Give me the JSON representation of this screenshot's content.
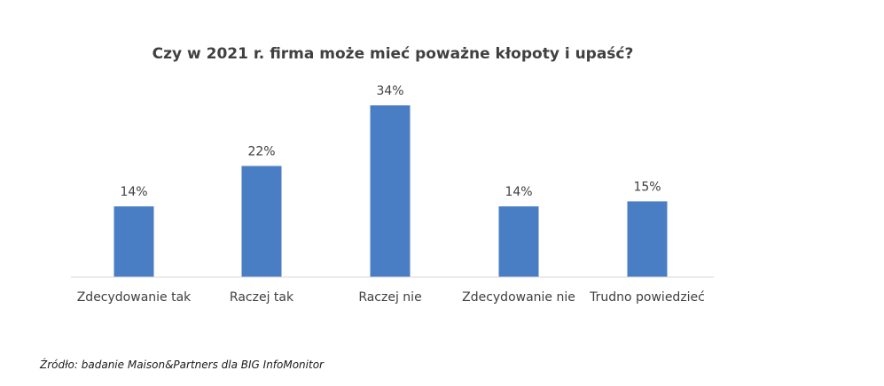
{
  "chart_data": {
    "type": "bar",
    "title": "Czy w 2021 r.  firma może mieć poważne kłopoty i upaść?",
    "categories": [
      "Zdecydowanie tak",
      "Raczej tak",
      "Raczej nie",
      "Zdecydowanie nie",
      "Trudno powiedzieć"
    ],
    "values": [
      14,
      22,
      34,
      14,
      15
    ],
    "value_labels": [
      "14%",
      "22%",
      "34%",
      "14%",
      "15%"
    ],
    "xlabel": "",
    "ylabel": "",
    "ylim": [
      0,
      34
    ],
    "grid": false,
    "legend": "none",
    "colors": {
      "bar": "#4a7ec4",
      "axis": "#d9d9d9",
      "text": "#404040"
    }
  },
  "source": "Źródło: badanie Maison&Partners dla BIG InfoMonitor"
}
